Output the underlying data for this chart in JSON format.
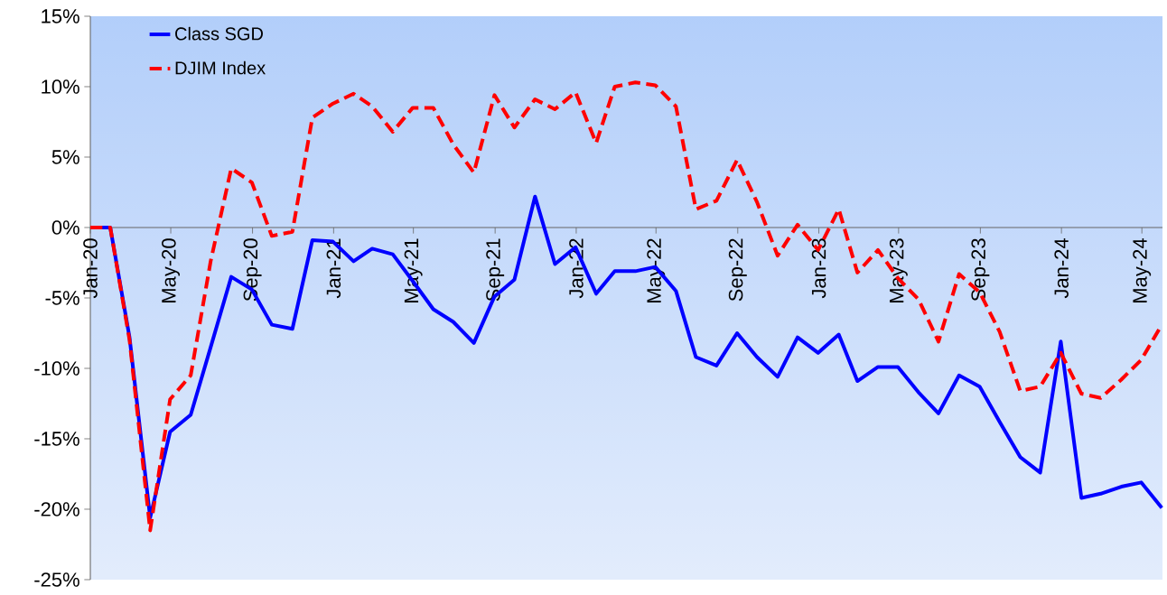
{
  "chart_data": {
    "type": "line",
    "x": [
      "2020-01-01",
      "2020-01-31",
      "2020-02-29",
      "2020-03-31",
      "2020-04-30",
      "2020-05-31",
      "2020-06-30",
      "2020-07-31",
      "2020-08-31",
      "2020-09-30",
      "2020-10-31",
      "2020-11-30",
      "2020-12-31",
      "2021-01-31",
      "2021-02-28",
      "2021-03-31",
      "2021-04-30",
      "2021-05-31",
      "2021-06-30",
      "2021-07-31",
      "2021-08-31",
      "2021-09-30",
      "2021-10-31",
      "2021-11-30",
      "2021-12-31",
      "2022-01-31",
      "2022-02-28",
      "2022-03-31",
      "2022-04-30",
      "2022-05-31",
      "2022-06-30",
      "2022-07-31",
      "2022-08-31",
      "2022-09-30",
      "2022-10-31",
      "2022-11-30",
      "2022-12-31",
      "2023-01-31",
      "2023-02-28",
      "2023-03-31",
      "2023-04-30",
      "2023-05-31",
      "2023-06-30",
      "2023-07-31",
      "2023-08-31",
      "2023-09-30",
      "2023-10-31",
      "2023-11-30",
      "2023-12-31",
      "2024-01-31",
      "2024-02-29",
      "2024-03-31",
      "2024-04-30",
      "2024-05-31"
    ],
    "series": [
      {
        "name": "Class SGD",
        "color": "#0000ff",
        "line_style": "solid",
        "values": [
          0,
          0,
          -7.8,
          -20.6,
          -14.5,
          -13.3,
          -8.5,
          -3.5,
          -4.4,
          -6.9,
          -7.2,
          -0.9,
          -1.0,
          -2.4,
          -1.5,
          -1.9,
          -3.8,
          -5.8,
          -6.7,
          -8.2,
          -4.9,
          -3.7,
          2.2,
          -2.6,
          -1.4,
          -4.7,
          -3.1,
          -3.1,
          -2.8,
          -4.5,
          -9.2,
          -9.8,
          -7.5,
          -9.2,
          -10.6,
          -7.8,
          -8.9,
          -7.6,
          -10.9,
          -9.9,
          -9.9,
          -11.7,
          -13.2,
          -10.5,
          -11.3,
          -13.8,
          -16.3,
          -17.4,
          -8.1,
          -19.2,
          -18.9,
          -18.4,
          -18.1,
          -19.9
        ]
      },
      {
        "name": "DJIM Index",
        "color": "#ff0000",
        "line_style": "dashed",
        "values": [
          0,
          0,
          -8.0,
          -21.5,
          -12.2,
          -10.5,
          -2.4,
          4.2,
          3.2,
          -0.6,
          -0.3,
          7.8,
          8.8,
          9.5,
          8.6,
          6.8,
          8.5,
          8.5,
          5.9,
          3.9,
          9.4,
          7.1,
          9.1,
          8.4,
          9.6,
          6.0,
          10.0,
          10.3,
          10.1,
          8.6,
          1.3,
          1.9,
          4.8,
          1.8,
          -2.0,
          0.2,
          -1.6,
          1.3,
          -3.2,
          -1.6,
          -3.6,
          -5.1,
          -8.1,
          -3.3,
          -4.6,
          -7.4,
          -11.6,
          -11.3,
          -8.9,
          -11.8,
          -12.1,
          -10.8,
          -9.4,
          -6.9
        ]
      }
    ],
    "xlim": [
      "2020-01-01",
      "2024-06-01"
    ],
    "xticks": [
      {
        "value": "2020-01-01",
        "label": "Jan-20"
      },
      {
        "value": "2020-05-01",
        "label": "May-20"
      },
      {
        "value": "2020-09-01",
        "label": "Sep-20"
      },
      {
        "value": "2021-01-01",
        "label": "Jan-21"
      },
      {
        "value": "2021-05-01",
        "label": "May-21"
      },
      {
        "value": "2021-09-01",
        "label": "Sep-21"
      },
      {
        "value": "2022-01-01",
        "label": "Jan-22"
      },
      {
        "value": "2022-05-01",
        "label": "May-22"
      },
      {
        "value": "2022-09-01",
        "label": "Sep-22"
      },
      {
        "value": "2023-01-01",
        "label": "Jan-23"
      },
      {
        "value": "2023-05-01",
        "label": "May-23"
      },
      {
        "value": "2023-09-01",
        "label": "Sep-23"
      },
      {
        "value": "2024-01-01",
        "label": "Jan-24"
      },
      {
        "value": "2024-05-01",
        "label": "May-24"
      }
    ],
    "ylim": [
      -25,
      15
    ],
    "yticks": [
      {
        "value": -25,
        "label": "-25%"
      },
      {
        "value": -20,
        "label": "-20%"
      },
      {
        "value": -15,
        "label": "-15%"
      },
      {
        "value": -10,
        "label": "-10%"
      },
      {
        "value": -5,
        "label": "-5%"
      },
      {
        "value": 0,
        "label": "0%"
      },
      {
        "value": 5,
        "label": "5%"
      },
      {
        "value": 10,
        "label": "10%"
      },
      {
        "value": 15,
        "label": "15%"
      }
    ],
    "legend": "top left",
    "grid": false
  }
}
